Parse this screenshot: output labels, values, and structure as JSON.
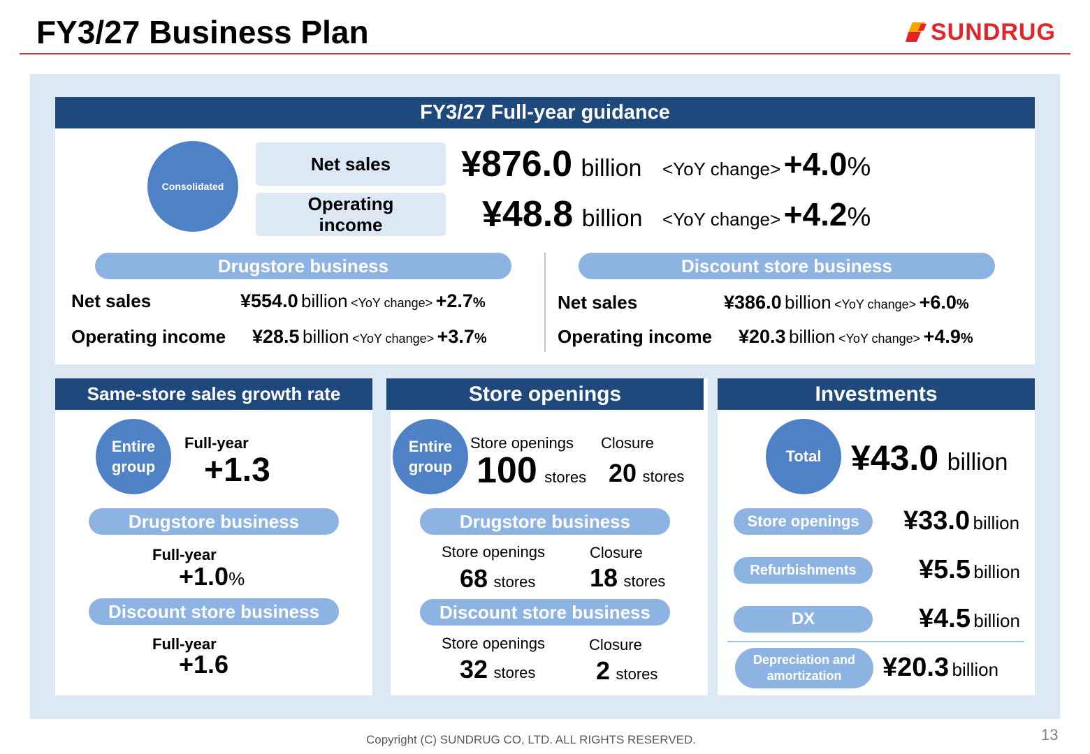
{
  "page": {
    "title": "FY3/27 Business Plan",
    "logo_text": "SUNDRUG",
    "copyright": "Copyright (C)  SUNDRUG CO, LTD. ALL RIGHTS RESERVED.",
    "page_number": "13"
  },
  "guidance": {
    "header": "FY3/27 Full-year guidance",
    "consolidated_label": "Consolidated",
    "net_sales_label": "Net sales",
    "operating_income_label": "Operating income",
    "net_sales_value": "¥876.0",
    "operating_income_value": "¥48.8",
    "billion": "billion",
    "yoy_label": "<YoY change>",
    "net_sales_yoy": "+4.0",
    "operating_income_yoy": "+4.2",
    "percent": "%",
    "drugstore": {
      "label": "Drugstore business",
      "net_sales_label": "Net sales",
      "net_sales_value": "¥554.0",
      "net_sales_yoy": "+2.7",
      "op_label": "Operating income",
      "op_value": "¥28.5",
      "op_yoy": "+3.7"
    },
    "discount": {
      "label": "Discount store business",
      "net_sales_label": "Net sales",
      "net_sales_value": "¥386.0",
      "net_sales_yoy": "+6.0",
      "op_label": "Operating income",
      "op_value": "¥20.3",
      "op_yoy": "+4.9"
    }
  },
  "same_store": {
    "header": "Same-store sales growth rate",
    "entire_group_label": "Entire group",
    "full_year_label": "Full-year",
    "group_value": "+1.3",
    "drugstore_label": "Drugstore business",
    "drugstore_value": "+1.0",
    "drugstore_unit": "%",
    "discount_label": "Discount store business",
    "discount_value": "+1.6"
  },
  "store_openings": {
    "header": "Store openings",
    "entire_group_label": "Entire group",
    "openings_label": "Store openings",
    "closure_label": "Closure",
    "stores_unit": "stores",
    "group_openings": "100",
    "group_closures": "20",
    "drugstore_label": "Drugstore business",
    "drugstore_openings": "68",
    "drugstore_closures": "18",
    "discount_label": "Discount store business",
    "discount_openings": "32",
    "discount_closures": "2"
  },
  "investments": {
    "header": "Investments",
    "total_label": "Total",
    "total_value": "¥43.0",
    "billion": "billion",
    "store_openings_label": "Store openings",
    "store_openings_value": "¥33.0",
    "refurbishments_label": "Refurbishments",
    "refurbishments_value": "¥5.5",
    "dx_label": "DX",
    "dx_value": "¥4.5",
    "depreciation_label": "Depreciation and amortization",
    "depreciation_value": "¥20.3"
  },
  "colors": {
    "navy_header": "#1f497d",
    "circle_blue": "#4f81c7",
    "pill_blue": "#8db3e2",
    "panel_bg": "#dde8f5",
    "logo_red": "#e3242b"
  }
}
